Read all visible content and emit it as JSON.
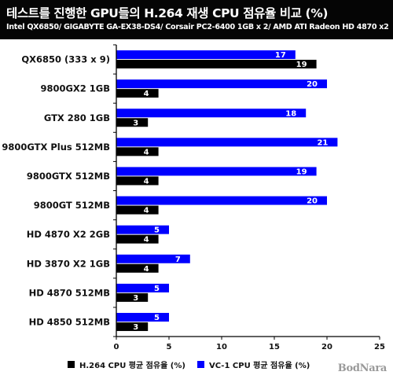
{
  "chart_data": {
    "type": "bar",
    "orientation": "horizontal",
    "title": "테스트를 진행한 GPU들의 H.264 재생 CPU 점유율 비교 (%)",
    "subtitle": "Intel QX6850/ GIGABYTE GA-EX38-DS4/ Corsair PC2-6400 1GB x 2/ AMD ATI Radeon HD 4870 x2",
    "categories": [
      "QX6850 (333 x 9)",
      "9800GX2 1GB",
      "GTX 280 1GB",
      "9800GTX Plus 512MB",
      "9800GTX 512MB",
      "9800GT 512MB",
      "HD 4870 X2 2GB",
      "HD 3870 X2 1GB",
      "HD 4870 512MB",
      "HD 4850 512MB"
    ],
    "series": [
      {
        "name": "VC-1 CPU 평균 점유율 (%)",
        "color": "#0000ff",
        "values": [
          17,
          20,
          18,
          21,
          19,
          20,
          5,
          7,
          5,
          5
        ]
      },
      {
        "name": "H.264 CPU 평균 점유율 (%)",
        "color": "#000000",
        "values": [
          19,
          4,
          3,
          4,
          4,
          4,
          4,
          4,
          3,
          3
        ]
      }
    ],
    "xlim": [
      0,
      25
    ],
    "xticks": [
      "0",
      "5",
      "10",
      "15",
      "20",
      "25"
    ],
    "grid": false,
    "legend_position": "bottom"
  },
  "legend": {
    "h264": {
      "label": "H.264 CPU 평균 점유율 (%)",
      "color": "#000000"
    },
    "vc1": {
      "label": "VC-1 CPU 평균 점유율 (%)",
      "color": "#0000ff"
    }
  },
  "watermark": "BodNara"
}
